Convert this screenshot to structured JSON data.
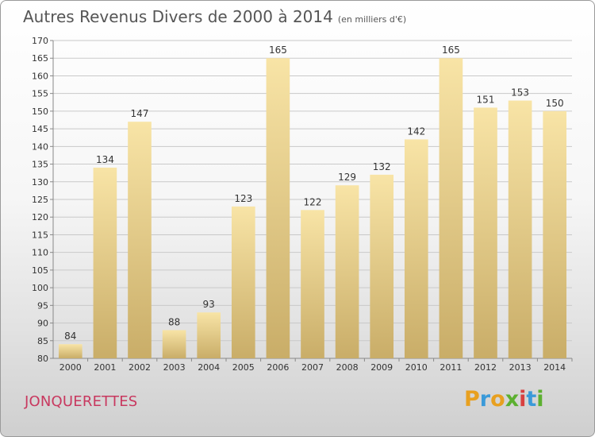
{
  "title": {
    "main": "Autres Revenus Divers de 2000 à 2014",
    "unit": "(en milliers d'€)"
  },
  "city": "JONQUERETTES",
  "logo": {
    "text": "Proxiti",
    "letters": [
      {
        "ch": "P",
        "color": "#e8a020"
      },
      {
        "ch": "r",
        "color": "#3a9ad9"
      },
      {
        "ch": "o",
        "color": "#e8a020"
      },
      {
        "ch": "x",
        "color": "#5cb030"
      },
      {
        "ch": "i",
        "color": "#d84040"
      },
      {
        "ch": "t",
        "color": "#3a9ad9"
      },
      {
        "ch": "i",
        "color": "#5cb030"
      }
    ]
  },
  "colors": {
    "bar_top": "#f8e4a6",
    "bar_bottom": "#c9ad68",
    "grid": "#c9c9c9",
    "axis_text": "#333333"
  },
  "chart_data": {
    "type": "bar",
    "title": "Autres Revenus Divers de 2000 à 2014",
    "subtitle": "(en milliers d'€)",
    "categories": [
      "2000",
      "2001",
      "2002",
      "2003",
      "2004",
      "2005",
      "2006",
      "2007",
      "2008",
      "2009",
      "2010",
      "2011",
      "2012",
      "2013",
      "2014"
    ],
    "values": [
      84,
      134,
      147,
      88,
      93,
      123,
      165,
      122,
      129,
      132,
      142,
      165,
      151,
      153,
      150
    ],
    "ylim": [
      80,
      170
    ],
    "yticks": [
      80,
      85,
      90,
      95,
      100,
      105,
      110,
      115,
      120,
      125,
      130,
      135,
      140,
      145,
      150,
      155,
      160,
      165,
      170
    ],
    "grid": true
  }
}
